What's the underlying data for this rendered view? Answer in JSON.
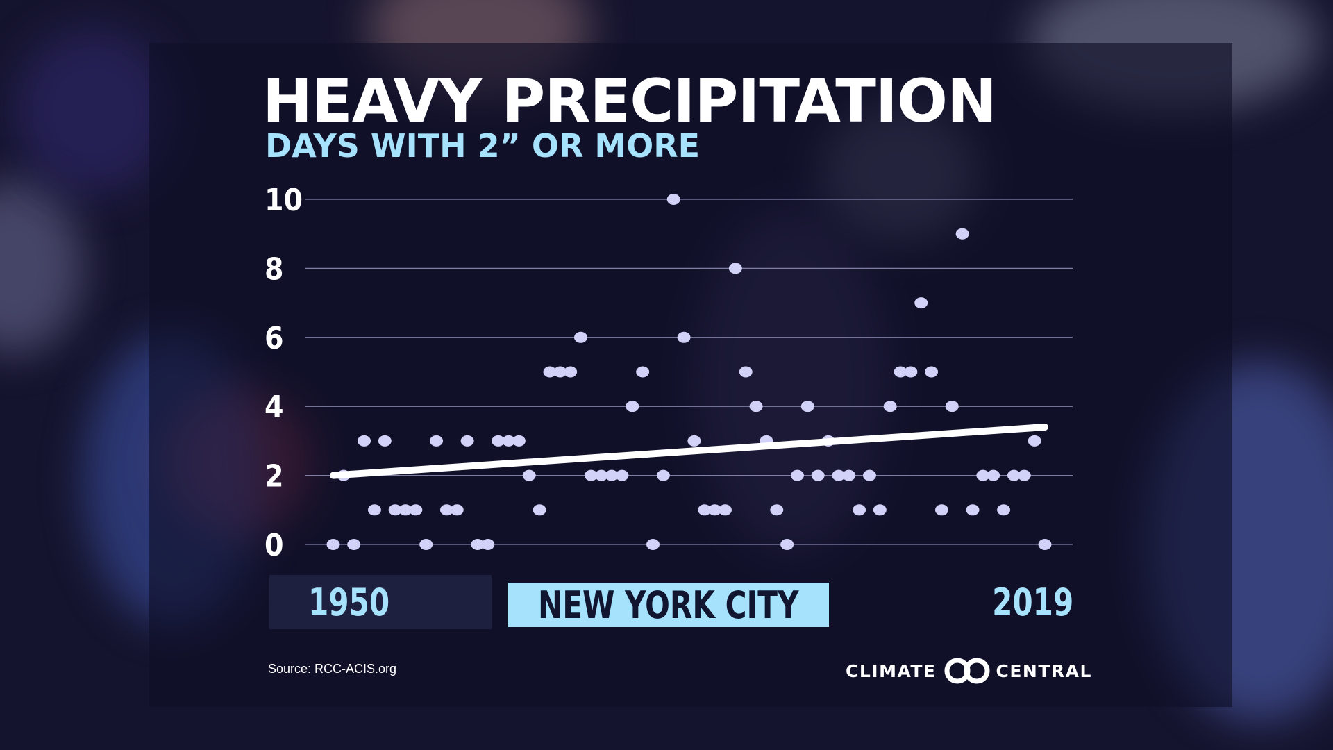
{
  "header": {
    "title": "HEAVY PRECIPITATION",
    "subtitle": "DAYS WITH 2” OR MORE"
  },
  "footer": {
    "source": "Source: RCC-ACIS.org",
    "logo_left": "CLIMATE",
    "logo_right": "CENTRAL"
  },
  "colors": {
    "accent": "#a6e2fb",
    "point": "#d2d2f8",
    "trend": "#ffffff",
    "grid": "#8c8cb4"
  },
  "chart_data": {
    "type": "scatter",
    "title": "HEAVY PRECIPITATION",
    "subtitle": "DAYS WITH 2” OR MORE",
    "location": "NEW YORK CITY",
    "x_start_label": "1950",
    "x_end_label": "2019",
    "xlim": [
      1950,
      2019
    ],
    "ylim": [
      0,
      10
    ],
    "yticks": [
      0,
      2,
      4,
      6,
      8,
      10
    ],
    "grid": true,
    "series": [
      {
        "x": [
          1950,
          1951,
          1952,
          1953,
          1954,
          1955,
          1956,
          1957,
          1958,
          1959,
          1960,
          1961,
          1962,
          1963,
          1964,
          1965,
          1966,
          1967,
          1968,
          1969,
          1970,
          1971,
          1972,
          1973,
          1974,
          1975,
          1976,
          1977,
          1978,
          1979,
          1980,
          1981,
          1982,
          1983,
          1984,
          1985,
          1986,
          1987,
          1988,
          1989,
          1990,
          1991,
          1992,
          1993,
          1994,
          1995,
          1996,
          1997,
          1998,
          1999,
          2000,
          2001,
          2002,
          2003,
          2004,
          2005,
          2006,
          2007,
          2008,
          2009,
          2010,
          2011,
          2012,
          2013,
          2014,
          2015,
          2016,
          2017,
          2018,
          2019
        ],
        "y": [
          0,
          2,
          0,
          3,
          1,
          3,
          1,
          1,
          1,
          0,
          3,
          1,
          1,
          3,
          0,
          0,
          3,
          3,
          3,
          2,
          1,
          5,
          5,
          5,
          6,
          2,
          2,
          2,
          2,
          4,
          5,
          0,
          2,
          10,
          6,
          3,
          1,
          1,
          1,
          8,
          5,
          4,
          3,
          1,
          0,
          2,
          4,
          2,
          3,
          2,
          2,
          1,
          2,
          1,
          4,
          5,
          5,
          7,
          5,
          1,
          4,
          9,
          1,
          2,
          2,
          1,
          2,
          2,
          3,
          0
        ]
      }
    ],
    "trendline": {
      "x": [
        1950,
        2019
      ],
      "y": [
        2.0,
        3.4
      ]
    }
  }
}
